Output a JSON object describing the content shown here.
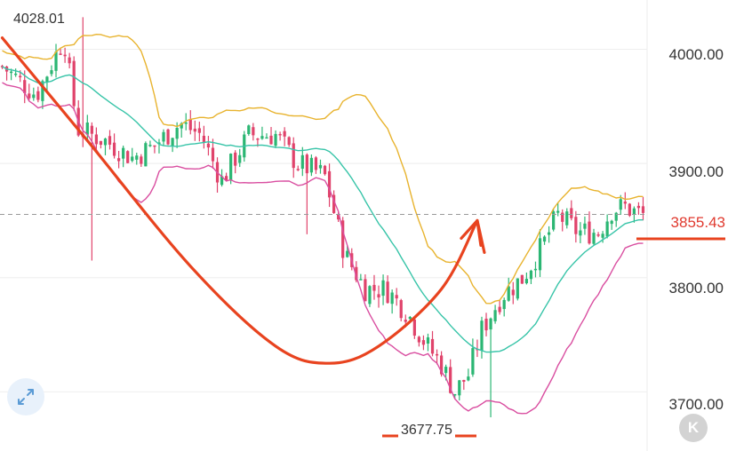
{
  "chart_data": {
    "type": "candlestick",
    "ylim": [
      3670,
      4040
    ],
    "y_ticks": [
      {
        "value": 4000,
        "label": "4000.00"
      },
      {
        "value": 3900,
        "label": "3900.00"
      },
      {
        "value": 3800,
        "label": "3800.00"
      },
      {
        "value": 3700,
        "label": "3700.00"
      }
    ],
    "current_price": {
      "value": 3855.43,
      "label": "3855.43"
    },
    "annotations": {
      "high": {
        "value": 4028.01,
        "label": "4028.01"
      },
      "low": {
        "value": 3677.75,
        "label": "3677.75"
      }
    },
    "candle_count": 144,
    "drawn_curve_points": [
      [
        0,
        4010
      ],
      [
        25,
        3920
      ],
      [
        55,
        3810
      ],
      [
        80,
        3740
      ],
      [
        95,
        3725
      ],
      [
        110,
        3740
      ],
      [
        128,
        3790
      ],
      [
        138,
        3850
      ]
    ],
    "colors": {
      "up": "#2bb673",
      "down": "#e0436b",
      "bollinger_upper": "#e8b32e",
      "bollinger_middle": "#37c4a8",
      "bollinger_lower": "#d94ea0",
      "annotation": "#e8431f",
      "current_line": "#9a9a9a",
      "price_text": "#e03a2f"
    }
  },
  "ui": {
    "expand_icon": "expand-arrows-icon",
    "k_button": {
      "icon": "k-letter-icon",
      "label": "K"
    }
  }
}
